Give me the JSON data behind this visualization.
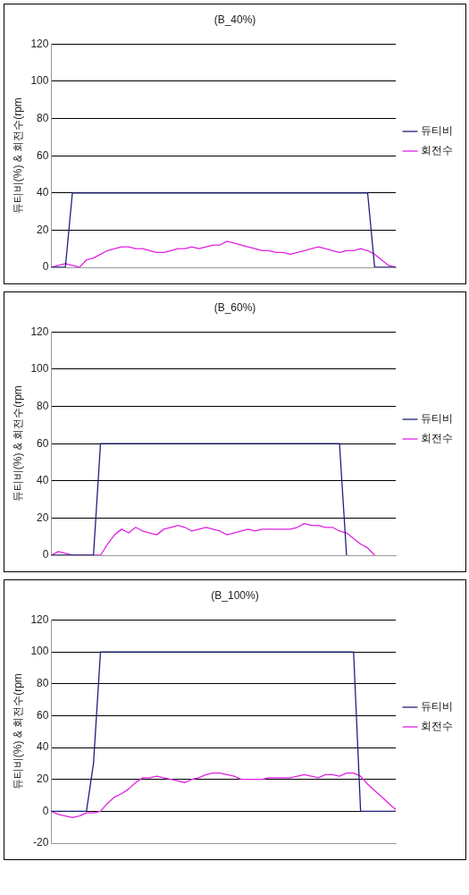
{
  "chart_data": [
    {
      "type": "line",
      "title": "(B_40%)",
      "ylabel": "듀티비(%) & 회전수(rpm",
      "categories": [
        null,
        null,
        null,
        null,
        null,
        null,
        null,
        null,
        null,
        null,
        null,
        null,
        null,
        null,
        null,
        null,
        null,
        null,
        null,
        null,
        null,
        null,
        null,
        null,
        null,
        null,
        null,
        null,
        null,
        null,
        null,
        null,
        null,
        null,
        null,
        null,
        null,
        null,
        null,
        null,
        null,
        null,
        null,
        null,
        null,
        null,
        null,
        null,
        null,
        null
      ],
      "ylim": [
        0,
        120
      ],
      "yticks": [
        0,
        20,
        40,
        60,
        80,
        100,
        120
      ],
      "grid": "y",
      "legend": "right",
      "series": [
        {
          "name": "듀티비",
          "color": "#1f1f7a",
          "values": [
            0,
            0,
            0,
            40,
            40,
            40,
            40,
            40,
            40,
            40,
            40,
            40,
            40,
            40,
            40,
            40,
            40,
            40,
            40,
            40,
            40,
            40,
            40,
            40,
            40,
            40,
            40,
            40,
            40,
            40,
            40,
            40,
            40,
            40,
            40,
            40,
            40,
            40,
            40,
            40,
            40,
            40,
            40,
            40,
            40,
            40,
            0,
            0,
            0,
            0
          ]
        },
        {
          "name": "회전수",
          "color": "#e020e0",
          "values": [
            0,
            1,
            2,
            1,
            0,
            4,
            5,
            7,
            9,
            10,
            11,
            11,
            10,
            10,
            9,
            8,
            8,
            9,
            10,
            10,
            11,
            10,
            11,
            12,
            12,
            14,
            13,
            12,
            11,
            10,
            9,
            9,
            8,
            8,
            7,
            8,
            9,
            10,
            11,
            10,
            9,
            8,
            9,
            9,
            10,
            9,
            7,
            4,
            1,
            0
          ]
        }
      ]
    },
    {
      "type": "line",
      "title": "(B_60%)",
      "ylabel": "듀티비(%) & 회전수(rpm",
      "categories": [
        null,
        null,
        null,
        null,
        null,
        null,
        null,
        null,
        null,
        null,
        null,
        null,
        null,
        null,
        null,
        null,
        null,
        null,
        null,
        null,
        null,
        null,
        null,
        null,
        null,
        null,
        null,
        null,
        null,
        null,
        null,
        null,
        null,
        null,
        null,
        null,
        null,
        null,
        null,
        null,
        null,
        null,
        null,
        null,
        null,
        null,
        null,
        null,
        null,
        null
      ],
      "ylim": [
        0,
        120
      ],
      "yticks": [
        0,
        20,
        40,
        60,
        80,
        100,
        120
      ],
      "grid": "y",
      "legend": "right",
      "series": [
        {
          "name": "듀티비",
          "color": "#1f1f7a",
          "values": [
            0,
            0,
            0,
            0,
            0,
            0,
            0,
            60,
            60,
            60,
            60,
            60,
            60,
            60,
            60,
            60,
            60,
            60,
            60,
            60,
            60,
            60,
            60,
            60,
            60,
            60,
            60,
            60,
            60,
            60,
            60,
            60,
            60,
            60,
            60,
            60,
            60,
            60,
            60,
            60,
            60,
            60,
            0,
            null,
            null,
            null,
            null,
            null,
            null,
            null
          ]
        },
        {
          "name": "회전수",
          "color": "#e020e0",
          "values": [
            0,
            2,
            1,
            0,
            0,
            0,
            0,
            0,
            6,
            11,
            14,
            12,
            15,
            13,
            12,
            11,
            14,
            15,
            16,
            15,
            13,
            14,
            15,
            14,
            13,
            11,
            12,
            13,
            14,
            13,
            14,
            14,
            14,
            14,
            14,
            15,
            17,
            16,
            16,
            15,
            15,
            13,
            12,
            9,
            6,
            4,
            0,
            null,
            null,
            null
          ]
        }
      ]
    },
    {
      "type": "line",
      "title": "(B_100%)",
      "ylabel": "듀티비(%) & 회전수(rpm",
      "categories": [
        null,
        null,
        null,
        null,
        null,
        null,
        null,
        null,
        null,
        null,
        null,
        null,
        null,
        null,
        null,
        null,
        null,
        null,
        null,
        null,
        null,
        null,
        null,
        null,
        null,
        null,
        null,
        null,
        null,
        null,
        null,
        null,
        null,
        null,
        null,
        null,
        null,
        null,
        null,
        null,
        null,
        null,
        null,
        null,
        null,
        null,
        null,
        null,
        null,
        null
      ],
      "ylim": [
        -20,
        120
      ],
      "yticks": [
        -20,
        0,
        20,
        40,
        60,
        80,
        100,
        120
      ],
      "grid": "y",
      "legend": "right",
      "series": [
        {
          "name": "듀티비",
          "color": "#1f1f7a",
          "values": [
            0,
            0,
            0,
            0,
            0,
            0,
            30,
            100,
            100,
            100,
            100,
            100,
            100,
            100,
            100,
            100,
            100,
            100,
            100,
            100,
            100,
            100,
            100,
            100,
            100,
            100,
            100,
            100,
            100,
            100,
            100,
            100,
            100,
            100,
            100,
            100,
            100,
            100,
            100,
            100,
            100,
            100,
            100,
            100,
            0,
            0,
            0,
            0,
            0,
            0
          ]
        },
        {
          "name": "회전수",
          "color": "#e020e0",
          "values": [
            0,
            -2,
            -3,
            -4,
            -3,
            -1,
            -1,
            0,
            5,
            9,
            11,
            14,
            18,
            21,
            21,
            22,
            21,
            20,
            19,
            18,
            20,
            21,
            23,
            24,
            24,
            23,
            22,
            20,
            20,
            20,
            20,
            21,
            21,
            21,
            21,
            22,
            23,
            22,
            21,
            23,
            23,
            22,
            24,
            24,
            22,
            17,
            13,
            9,
            5,
            1
          ]
        }
      ]
    }
  ]
}
